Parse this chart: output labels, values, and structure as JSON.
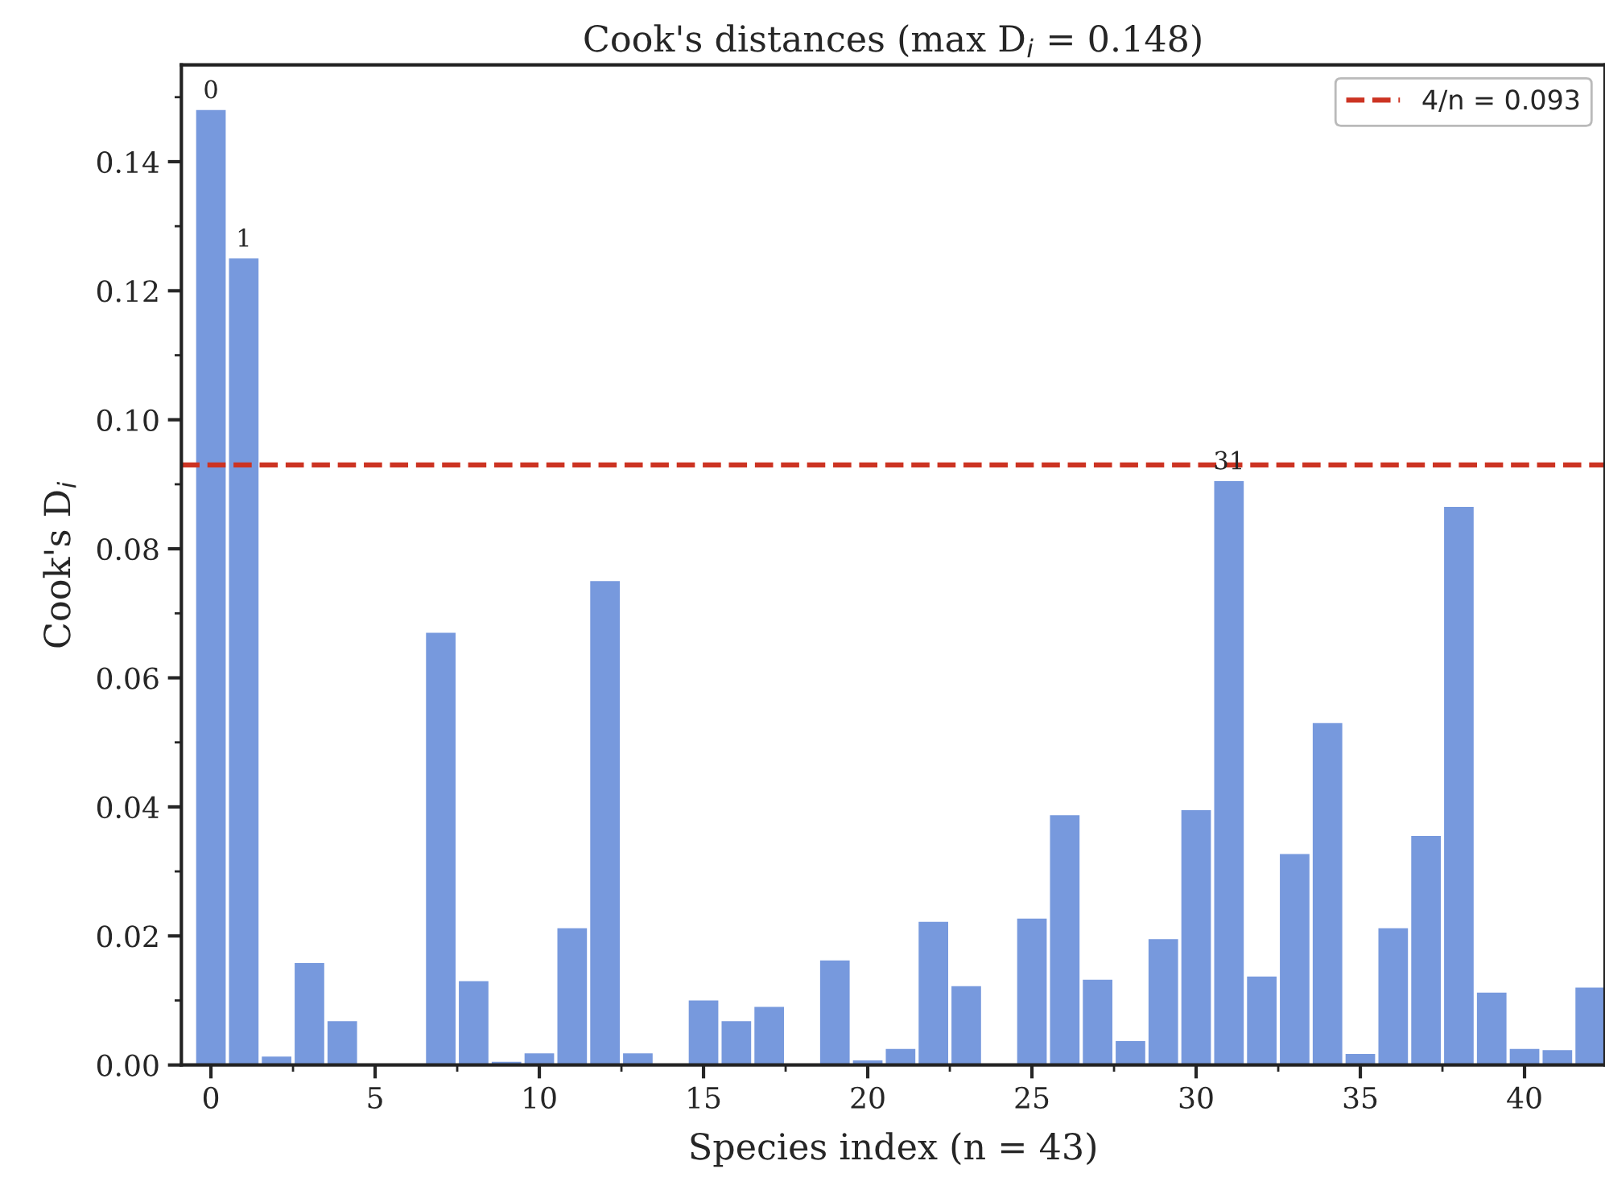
{
  "chart_data": {
    "type": "bar",
    "title": "Cook's distances (max D$_{i}$ = 0.148)",
    "xlabel": "Species index (n = 43)",
    "ylabel": "Cook's D$_{i}$",
    "x": [
      0,
      1,
      2,
      3,
      4,
      5,
      6,
      7,
      8,
      9,
      10,
      11,
      12,
      13,
      14,
      15,
      16,
      17,
      18,
      19,
      20,
      21,
      22,
      23,
      24,
      25,
      26,
      27,
      28,
      29,
      30,
      31,
      32,
      33,
      34,
      35,
      36,
      37,
      38,
      39,
      40,
      41,
      42
    ],
    "values": [
      0.148,
      0.125,
      0.0013,
      0.0158,
      0.0068,
      null,
      null,
      0.067,
      0.013,
      0.0005,
      0.0018,
      0.0212,
      0.075,
      0.0018,
      null,
      0.01,
      0.0068,
      0.009,
      null,
      0.0162,
      0.0007,
      0.0025,
      0.0222,
      0.0122,
      null,
      0.0227,
      0.0387,
      0.0132,
      0.0037,
      0.0195,
      0.0395,
      0.0905,
      0.0137,
      0.0327,
      0.053,
      0.0017,
      0.0212,
      0.0355,
      0.0865,
      0.0112,
      0.0025,
      0.0023,
      0.012
    ],
    "color": "#7799dd",
    "xlim": [
      -0.9,
      42.45
    ],
    "xticks": [
      0,
      5,
      10,
      15,
      20,
      25,
      30,
      35,
      40
    ],
    "ylim": [
      0,
      0.155
    ],
    "yticks": [
      {
        "value": 0,
        "label": "0.00"
      },
      {
        "value": 0.02,
        "label": "0.02"
      },
      {
        "value": 0.04,
        "label": "0.04"
      },
      {
        "value": 0.06,
        "label": "0.06"
      },
      {
        "value": 0.08,
        "label": "0.08"
      },
      {
        "value": 0.1,
        "label": "0.10"
      },
      {
        "value": 0.12,
        "label": "0.12"
      },
      {
        "value": 0.14,
        "label": "0.14"
      }
    ],
    "ref_lines": [
      {
        "axis": "y",
        "value": 0.093,
        "label": "4/n = 0.093",
        "color": "#cc3322",
        "line_style": "dashed"
      }
    ],
    "annotations": [
      {
        "text": "0",
        "x": 0,
        "y": 0.148
      },
      {
        "text": "1",
        "x": 1,
        "y": 0.125
      },
      {
        "text": "31",
        "x": 31,
        "y": 0.0905
      }
    ],
    "legend": "top right",
    "grid": false
  }
}
